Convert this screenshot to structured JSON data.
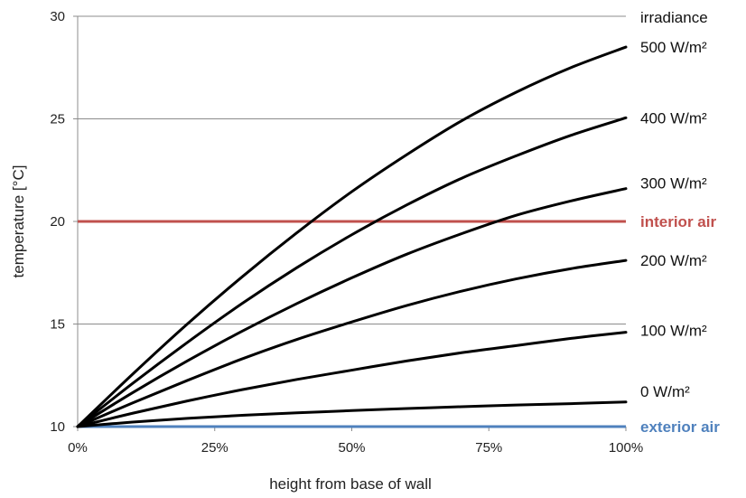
{
  "chart_data": {
    "type": "line",
    "xlabel": "height from base of wall",
    "ylabel": "temperature [°C]",
    "xlim": [
      0,
      100
    ],
    "ylim": [
      10,
      30
    ],
    "x_ticks": [
      0,
      25,
      50,
      75,
      100
    ],
    "x_tick_labels": [
      "0%",
      "25%",
      "50%",
      "75%",
      "100%"
    ],
    "y_ticks": [
      10,
      15,
      20,
      25,
      30
    ],
    "y_tick_labels": [
      "10",
      "15",
      "20",
      "25",
      "30"
    ],
    "grid": "horizontal",
    "legend_title": "irradiance",
    "x": [
      0,
      10,
      20,
      30,
      40,
      50,
      60,
      70,
      80,
      90,
      100
    ],
    "series": [
      {
        "name": "500 W/m²",
        "color": "#000000",
        "values": [
          10,
          12.55,
          15.0,
          17.3,
          19.45,
          21.45,
          23.25,
          24.9,
          26.3,
          27.5,
          28.5
        ]
      },
      {
        "name": "400 W/m²",
        "color": "#000000",
        "values": [
          10,
          12.1,
          14.1,
          16.0,
          17.75,
          19.35,
          20.8,
          22.1,
          23.2,
          24.2,
          25.05
        ]
      },
      {
        "name": "300 W/m²",
        "color": "#000000",
        "values": [
          10,
          11.65,
          13.2,
          14.65,
          16.0,
          17.25,
          18.4,
          19.4,
          20.3,
          21.0,
          21.6
        ]
      },
      {
        "name": "200 W/m²",
        "color": "#000000",
        "values": [
          10,
          11.15,
          12.25,
          13.3,
          14.25,
          15.1,
          15.9,
          16.6,
          17.2,
          17.7,
          18.1
        ]
      },
      {
        "name": "100 W/m²",
        "color": "#000000",
        "values": [
          10,
          10.65,
          11.25,
          11.8,
          12.3,
          12.75,
          13.2,
          13.6,
          13.95,
          14.3,
          14.6
        ]
      },
      {
        "name": "0 W/m²",
        "color": "#000000",
        "values": [
          10,
          10.22,
          10.4,
          10.55,
          10.67,
          10.78,
          10.88,
          10.97,
          11.05,
          11.12,
          11.2
        ]
      }
    ],
    "reference_lines": [
      {
        "name": "interior air",
        "y": 20,
        "color": "#c0504d"
      },
      {
        "name": "exterior air",
        "y": 10,
        "color": "#4f81bd"
      }
    ]
  }
}
